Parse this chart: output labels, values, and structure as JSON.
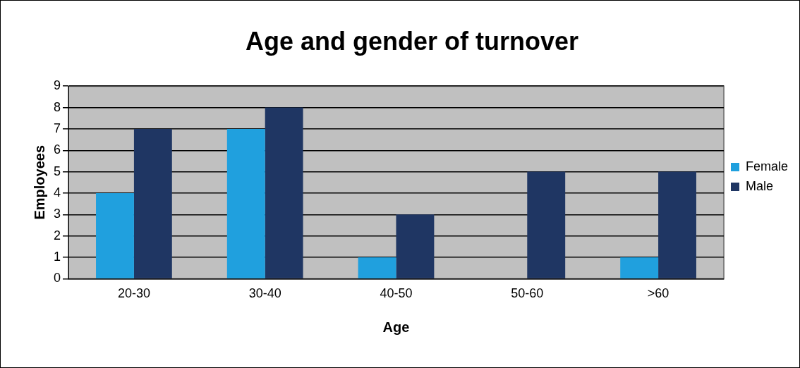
{
  "chart_data": {
    "type": "bar",
    "title": "Age and gender of turnover",
    "xlabel": "Age",
    "ylabel": "Employees",
    "categories": [
      "20-30",
      "30-40",
      "40-50",
      "50-60",
      ">60"
    ],
    "series": [
      {
        "name": "Female",
        "color": "#20a0de",
        "values": [
          4,
          7,
          1,
          0,
          1
        ]
      },
      {
        "name": "Male",
        "color": "#1f3663",
        "values": [
          7,
          8,
          3,
          5,
          5
        ]
      }
    ],
    "ylim": [
      0,
      9
    ],
    "yticks": [
      0,
      1,
      2,
      3,
      4,
      5,
      6,
      7,
      8,
      9
    ],
    "grid": "y",
    "legend": "right"
  }
}
